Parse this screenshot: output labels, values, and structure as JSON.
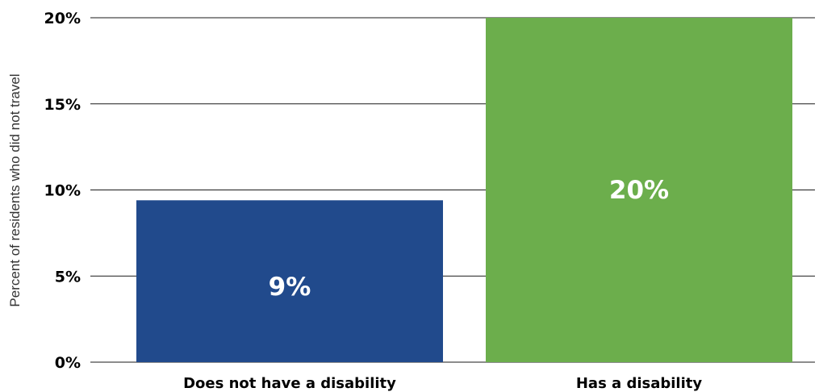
{
  "chart_data": {
    "type": "bar",
    "categories": [
      "Does not have a disability",
      "Has a disability"
    ],
    "values": [
      9.4,
      20
    ],
    "data_labels": [
      "9%",
      "20%"
    ],
    "colors": [
      "#214a8c",
      "#6cae4c"
    ],
    "title": "",
    "xlabel": "",
    "ylabel": "Percent of residents who did not travel",
    "ylim": [
      0,
      20
    ],
    "yticks": [
      0,
      5,
      10,
      15,
      20
    ],
    "ytick_labels": [
      "0%",
      "5%",
      "10%",
      "15%",
      "20%"
    ],
    "grid": true,
    "legend": "none"
  }
}
